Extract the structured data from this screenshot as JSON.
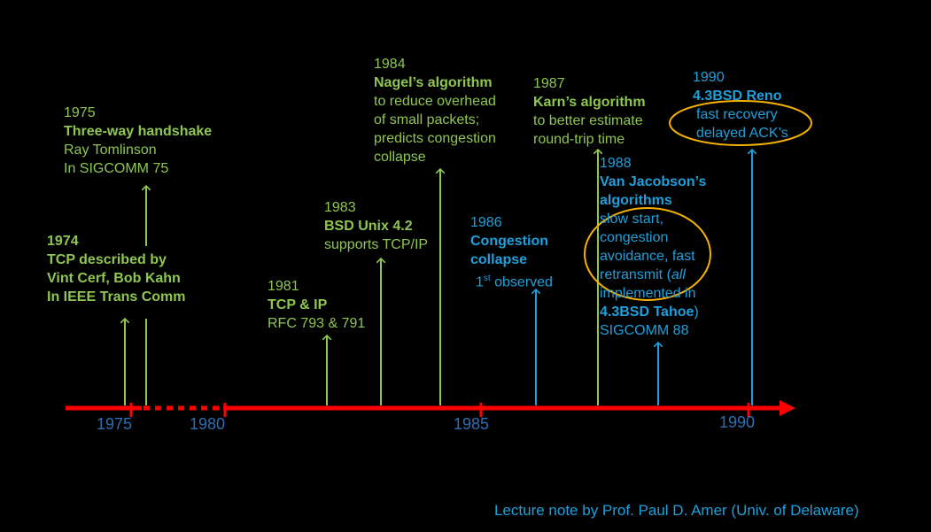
{
  "events": {
    "e1974": {
      "year": "1974",
      "title": "TCP described by",
      "line2": "Vint Cerf, Bob Kahn",
      "line3": "In IEEE Trans Comm"
    },
    "e1975": {
      "year": "1975",
      "title": "Three-way handshake",
      "line2": "Ray Tomlinson",
      "line3": "In SIGCOMM 75"
    },
    "e1981": {
      "year": "1981",
      "title": "TCP & IP",
      "line2": "RFC 793 & 791"
    },
    "e1983": {
      "year": "1983",
      "title": "BSD Unix 4.2",
      "line2": "supports TCP/IP"
    },
    "e1984": {
      "year": "1984",
      "title": "Nagel’s algorithm",
      "line2": "to reduce overhead",
      "line3": "of small packets;",
      "line4": "predicts congestion",
      "line5": "collapse"
    },
    "e1986": {
      "year": "1986",
      "title1": "Congestion",
      "title2": "collapse",
      "sup": "st",
      "first": "1",
      "observed": " observed"
    },
    "e1987": {
      "year": "1987",
      "title": "Karn’s algorithm",
      "line2": "to better estimate",
      "line3": "round-trip time"
    },
    "e1988": {
      "year": "1988",
      "title1": "Van Jacobson’s",
      "title2": "algorithms",
      "line3": "slow start,",
      "line4": "congestion",
      "line5": "avoidance, fast",
      "line6a": "retransmit (",
      "line6b": "all",
      "line7": "implemented in",
      "line8a": "4.3BSD Tahoe",
      "line8b": ")",
      "line9": "SIGCOMM 88"
    },
    "e1990": {
      "year": "1990",
      "title": "4.3BSD Reno",
      "line2": "fast recovery",
      "line3": "delayed ACK’s"
    }
  },
  "axis": {
    "ticks": [
      "1975",
      "1980",
      "1985",
      "1990"
    ]
  },
  "colors": {
    "axis": "#ff0000",
    "green": "#8fc650",
    "blue": "#1ea0dc",
    "highlight": "#f5b300",
    "tick_label": "#2d6fb3"
  },
  "credit": "Lecture note by Prof. Paul D. Amer (Univ. of Delaware)"
}
